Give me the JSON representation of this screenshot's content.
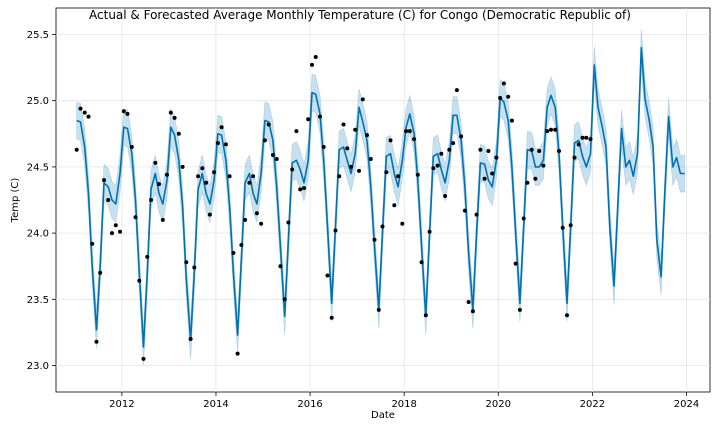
{
  "chart_data": {
    "type": "line",
    "title": "Actual & Forecasted Average Monthly Temperature (C) for Congo (Democratic Republic of)",
    "xlabel": "Date",
    "ylabel": "Temp (C)",
    "xlim": [
      2010.6,
      2024.5
    ],
    "ylim": [
      22.8,
      25.7
    ],
    "x_ticks": [
      2012,
      2014,
      2016,
      2018,
      2020,
      2022,
      2024
    ],
    "x_tick_labels": [
      "2012",
      "2014",
      "2016",
      "2018",
      "2020",
      "2022",
      "2024"
    ],
    "y_ticks": [
      23.0,
      23.5,
      24.0,
      24.5,
      25.0,
      25.5
    ],
    "y_tick_labels": [
      "23.0",
      "23.5",
      "24.0",
      "24.5",
      "25.0",
      "25.5"
    ],
    "grid": true,
    "colors": {
      "forecast_line": "#0072B2",
      "interval_fill": "#0072B2",
      "actual_points": "#000000"
    },
    "series": [
      {
        "type": "scatter",
        "x": [
          2011.04,
          2011.12,
          2011.21,
          2011.29,
          2011.37,
          2011.46,
          2011.54,
          2011.62,
          2011.71,
          2011.79,
          2011.87,
          2011.96,
          2012.04,
          2012.12,
          2012.21,
          2012.29,
          2012.37,
          2012.46,
          2012.54,
          2012.62,
          2012.71,
          2012.79,
          2012.87,
          2012.96,
          2013.04,
          2013.12,
          2013.21,
          2013.29,
          2013.37,
          2013.46,
          2013.54,
          2013.62,
          2013.71,
          2013.79,
          2013.87,
          2013.96,
          2014.04,
          2014.12,
          2014.21,
          2014.29,
          2014.37,
          2014.46,
          2014.54,
          2014.62,
          2014.71,
          2014.79,
          2014.87,
          2014.96,
          2015.04,
          2015.12,
          2015.21,
          2015.29,
          2015.37,
          2015.46,
          2015.54,
          2015.62,
          2015.71,
          2015.79,
          2015.87,
          2015.96,
          2016.04,
          2016.12,
          2016.21,
          2016.29,
          2016.37,
          2016.46,
          2016.54,
          2016.62,
          2016.71,
          2016.79,
          2016.87,
          2016.96,
          2017.04,
          2017.12,
          2017.21,
          2017.29,
          2017.37,
          2017.46,
          2017.54,
          2017.62,
          2017.71,
          2017.79,
          2017.87,
          2017.96,
          2018.04,
          2018.12,
          2018.21,
          2018.29,
          2018.37,
          2018.46,
          2018.54,
          2018.62,
          2018.71,
          2018.79,
          2018.87,
          2018.96,
          2019.04,
          2019.12,
          2019.21,
          2019.29,
          2019.37,
          2019.46,
          2019.54,
          2019.62,
          2019.71,
          2019.79,
          2019.87,
          2019.96,
          2020.04,
          2020.12,
          2020.21,
          2020.29,
          2020.37,
          2020.46,
          2020.54,
          2020.62,
          2020.71,
          2020.79,
          2020.87,
          2020.96,
          2021.04,
          2021.12,
          2021.21,
          2021.29,
          2021.37,
          2021.46,
          2021.54,
          2021.62,
          2021.71,
          2021.79,
          2021.87,
          2021.96
        ],
        "values": [
          24.63,
          24.94,
          24.91,
          24.88,
          23.92,
          23.18,
          23.7,
          24.4,
          24.25,
          24.0,
          24.06,
          24.01,
          24.92,
          24.9,
          24.65,
          24.12,
          23.64,
          23.05,
          23.82,
          24.25,
          24.53,
          24.37,
          24.1,
          24.44,
          24.91,
          24.87,
          24.75,
          24.5,
          23.78,
          23.2,
          23.74,
          24.43,
          24.49,
          24.38,
          24.14,
          24.46,
          24.68,
          24.8,
          24.67,
          24.43,
          23.85,
          23.09,
          23.91,
          24.1,
          24.38,
          24.43,
          24.15,
          24.07,
          24.7,
          24.82,
          24.59,
          24.56,
          23.75,
          23.5,
          24.08,
          24.48,
          24.77,
          24.33,
          24.34,
          24.86,
          25.27,
          25.33,
          24.88,
          24.65,
          23.68,
          23.36,
          24.02,
          24.43,
          24.82,
          24.64,
          24.5,
          24.78,
          24.47,
          25.01,
          24.74,
          24.56,
          23.95,
          23.42,
          24.05,
          24.46,
          24.7,
          24.21,
          24.43,
          24.07,
          24.77,
          24.77,
          24.71,
          24.44,
          23.78,
          23.38,
          24.01,
          24.49,
          24.51,
          24.6,
          24.28,
          24.63,
          24.68,
          25.08,
          24.73,
          24.17,
          23.48,
          23.41,
          24.14,
          24.63,
          24.41,
          24.62,
          24.45,
          24.57,
          25.02,
          25.13,
          25.03,
          24.85,
          23.77,
          23.42,
          24.11,
          24.38,
          24.63,
          24.41,
          24.62,
          24.51,
          24.77,
          24.78,
          24.78,
          24.62,
          24.04,
          23.38,
          24.06,
          24.57,
          24.67,
          24.72,
          24.72,
          24.71
        ]
      },
      {
        "type": "line",
        "x": [
          2011.04,
          2011.12,
          2011.21,
          2011.29,
          2011.37,
          2011.46,
          2011.54,
          2011.62,
          2011.71,
          2011.79,
          2011.87,
          2011.96,
          2012.04,
          2012.12,
          2012.21,
          2012.29,
          2012.37,
          2012.46,
          2012.54,
          2012.62,
          2012.71,
          2012.79,
          2012.87,
          2012.96,
          2013.04,
          2013.12,
          2013.21,
          2013.29,
          2013.37,
          2013.46,
          2013.54,
          2013.62,
          2013.71,
          2013.79,
          2013.87,
          2013.96,
          2014.04,
          2014.12,
          2014.21,
          2014.29,
          2014.37,
          2014.46,
          2014.54,
          2014.62,
          2014.71,
          2014.79,
          2014.87,
          2014.96,
          2015.04,
          2015.12,
          2015.21,
          2015.29,
          2015.37,
          2015.46,
          2015.54,
          2015.62,
          2015.71,
          2015.79,
          2015.87,
          2015.96,
          2016.04,
          2016.12,
          2016.21,
          2016.29,
          2016.37,
          2016.46,
          2016.54,
          2016.62,
          2016.71,
          2016.79,
          2016.87,
          2016.96,
          2017.04,
          2017.12,
          2017.21,
          2017.29,
          2017.37,
          2017.46,
          2017.54,
          2017.62,
          2017.71,
          2017.79,
          2017.87,
          2017.96,
          2018.04,
          2018.12,
          2018.21,
          2018.29,
          2018.37,
          2018.46,
          2018.54,
          2018.62,
          2018.71,
          2018.79,
          2018.87,
          2018.96,
          2019.04,
          2019.12,
          2019.21,
          2019.29,
          2019.37,
          2019.46,
          2019.54,
          2019.62,
          2019.71,
          2019.79,
          2019.87,
          2019.96,
          2020.04,
          2020.12,
          2020.21,
          2020.29,
          2020.37,
          2020.46,
          2020.54,
          2020.62,
          2020.71,
          2020.79,
          2020.87,
          2020.96,
          2021.04,
          2021.12,
          2021.21,
          2021.29,
          2021.37,
          2021.46,
          2021.54,
          2021.62,
          2021.71,
          2021.79,
          2021.87,
          2021.96,
          2022.04,
          2022.12,
          2022.21,
          2022.29,
          2022.37,
          2022.46,
          2022.54,
          2022.62,
          2022.71,
          2022.79,
          2022.87,
          2022.96,
          2023.04,
          2023.12,
          2023.21,
          2023.29,
          2023.37,
          2023.46,
          2023.54,
          2023.62,
          2023.71,
          2023.79,
          2023.87,
          2023.96
        ],
        "values": [
          24.85,
          24.84,
          24.65,
          24.3,
          23.75,
          23.27,
          23.75,
          24.38,
          24.35,
          24.25,
          24.22,
          24.45,
          24.8,
          24.79,
          24.6,
          24.25,
          23.7,
          23.14,
          23.7,
          24.33,
          24.45,
          24.3,
          24.22,
          24.4,
          24.8,
          24.74,
          24.55,
          24.2,
          23.65,
          23.19,
          23.7,
          24.33,
          24.45,
          24.3,
          24.22,
          24.4,
          24.75,
          24.74,
          24.55,
          24.2,
          23.7,
          23.23,
          23.8,
          24.38,
          24.45,
          24.3,
          24.22,
          24.45,
          24.85,
          24.84,
          24.7,
          24.35,
          23.9,
          23.37,
          23.95,
          24.53,
          24.55,
          24.48,
          24.38,
          24.55,
          25.06,
          25.05,
          24.9,
          24.55,
          24.05,
          23.47,
          24.05,
          24.63,
          24.65,
          24.55,
          24.45,
          24.6,
          24.95,
          24.84,
          24.7,
          24.35,
          23.9,
          23.42,
          24.0,
          24.58,
          24.6,
          24.45,
          24.35,
          24.55,
          24.8,
          24.9,
          24.75,
          24.4,
          23.9,
          23.37,
          24.0,
          24.58,
          24.6,
          24.48,
          24.38,
          24.55,
          24.89,
          24.89,
          24.7,
          24.35,
          23.85,
          23.42,
          24.0,
          24.53,
          24.52,
          24.4,
          24.35,
          24.55,
          25.02,
          24.99,
          24.85,
          24.5,
          24.0,
          23.47,
          24.05,
          24.63,
          24.62,
          24.5,
          24.5,
          24.55,
          24.95,
          25.04,
          24.95,
          24.6,
          24.05,
          23.47,
          24.05,
          24.68,
          24.7,
          24.58,
          24.5,
          24.6,
          25.27,
          24.95,
          24.8,
          24.65,
          24.05,
          23.6,
          24.2,
          24.79,
          24.5,
          24.55,
          24.43,
          24.6,
          25.4,
          25.01,
          24.85,
          24.65,
          23.95,
          23.67,
          24.3,
          24.88,
          24.5,
          24.57,
          24.45,
          24.45
        ]
      }
    ],
    "interval_half_width": 0.14
  }
}
